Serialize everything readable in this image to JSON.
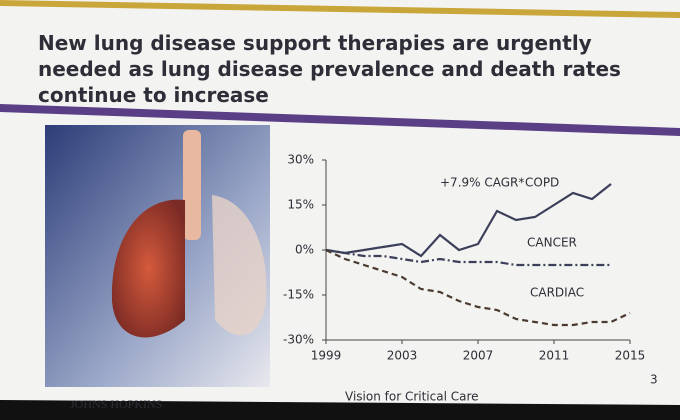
{
  "chart_data": {
    "type": "line",
    "title": "New lung disease support therapies are urgently needed as lung disease prevalence and death rates continue to increase",
    "annotation": "+7.9% CAGR*",
    "x": [
      1999,
      2000,
      2001,
      2002,
      2003,
      2004,
      2005,
      2006,
      2007,
      2008,
      2009,
      2010,
      2011,
      2012,
      2013,
      2014,
      2015
    ],
    "xlim": [
      1999,
      2015
    ],
    "xticks": [
      1999,
      2003,
      2007,
      2011,
      2015
    ],
    "ylim": [
      -30,
      30
    ],
    "yticks": [
      {
        "value": -30,
        "label": "-30%"
      },
      {
        "value": -15,
        "label": "-15%"
      },
      {
        "value": 0,
        "label": "0%"
      },
      {
        "value": 15,
        "label": "15%"
      },
      {
        "value": 30,
        "label": "30%"
      }
    ],
    "series": [
      {
        "name": "COPD",
        "color": "#3b3f5a",
        "line_style": "solid",
        "values": [
          0,
          -1,
          0,
          1,
          2,
          -2,
          5,
          0,
          2,
          13,
          10,
          11,
          15,
          19,
          17,
          22,
          null
        ]
      },
      {
        "name": "CANCER",
        "color": "#3b3f5a",
        "line_style": "dashdot",
        "values": [
          0,
          -1,
          -2,
          -2,
          -3,
          -4,
          -3,
          -4,
          -4,
          -4,
          -5,
          -5,
          -5,
          -5,
          -5,
          -5,
          null
        ]
      },
      {
        "name": "CARDIAC",
        "color": "#4a3a30",
        "line_style": "dashed",
        "values": [
          0,
          -3,
          -5,
          -7,
          -9,
          -13,
          -14,
          -17,
          -19,
          -20,
          -23,
          -24,
          -25,
          -25,
          -24,
          -24,
          -21
        ]
      }
    ]
  },
  "footer": {
    "organization": "JOHNS HOPKINS",
    "caption": "Vision for Critical Care",
    "page_number": "3"
  }
}
